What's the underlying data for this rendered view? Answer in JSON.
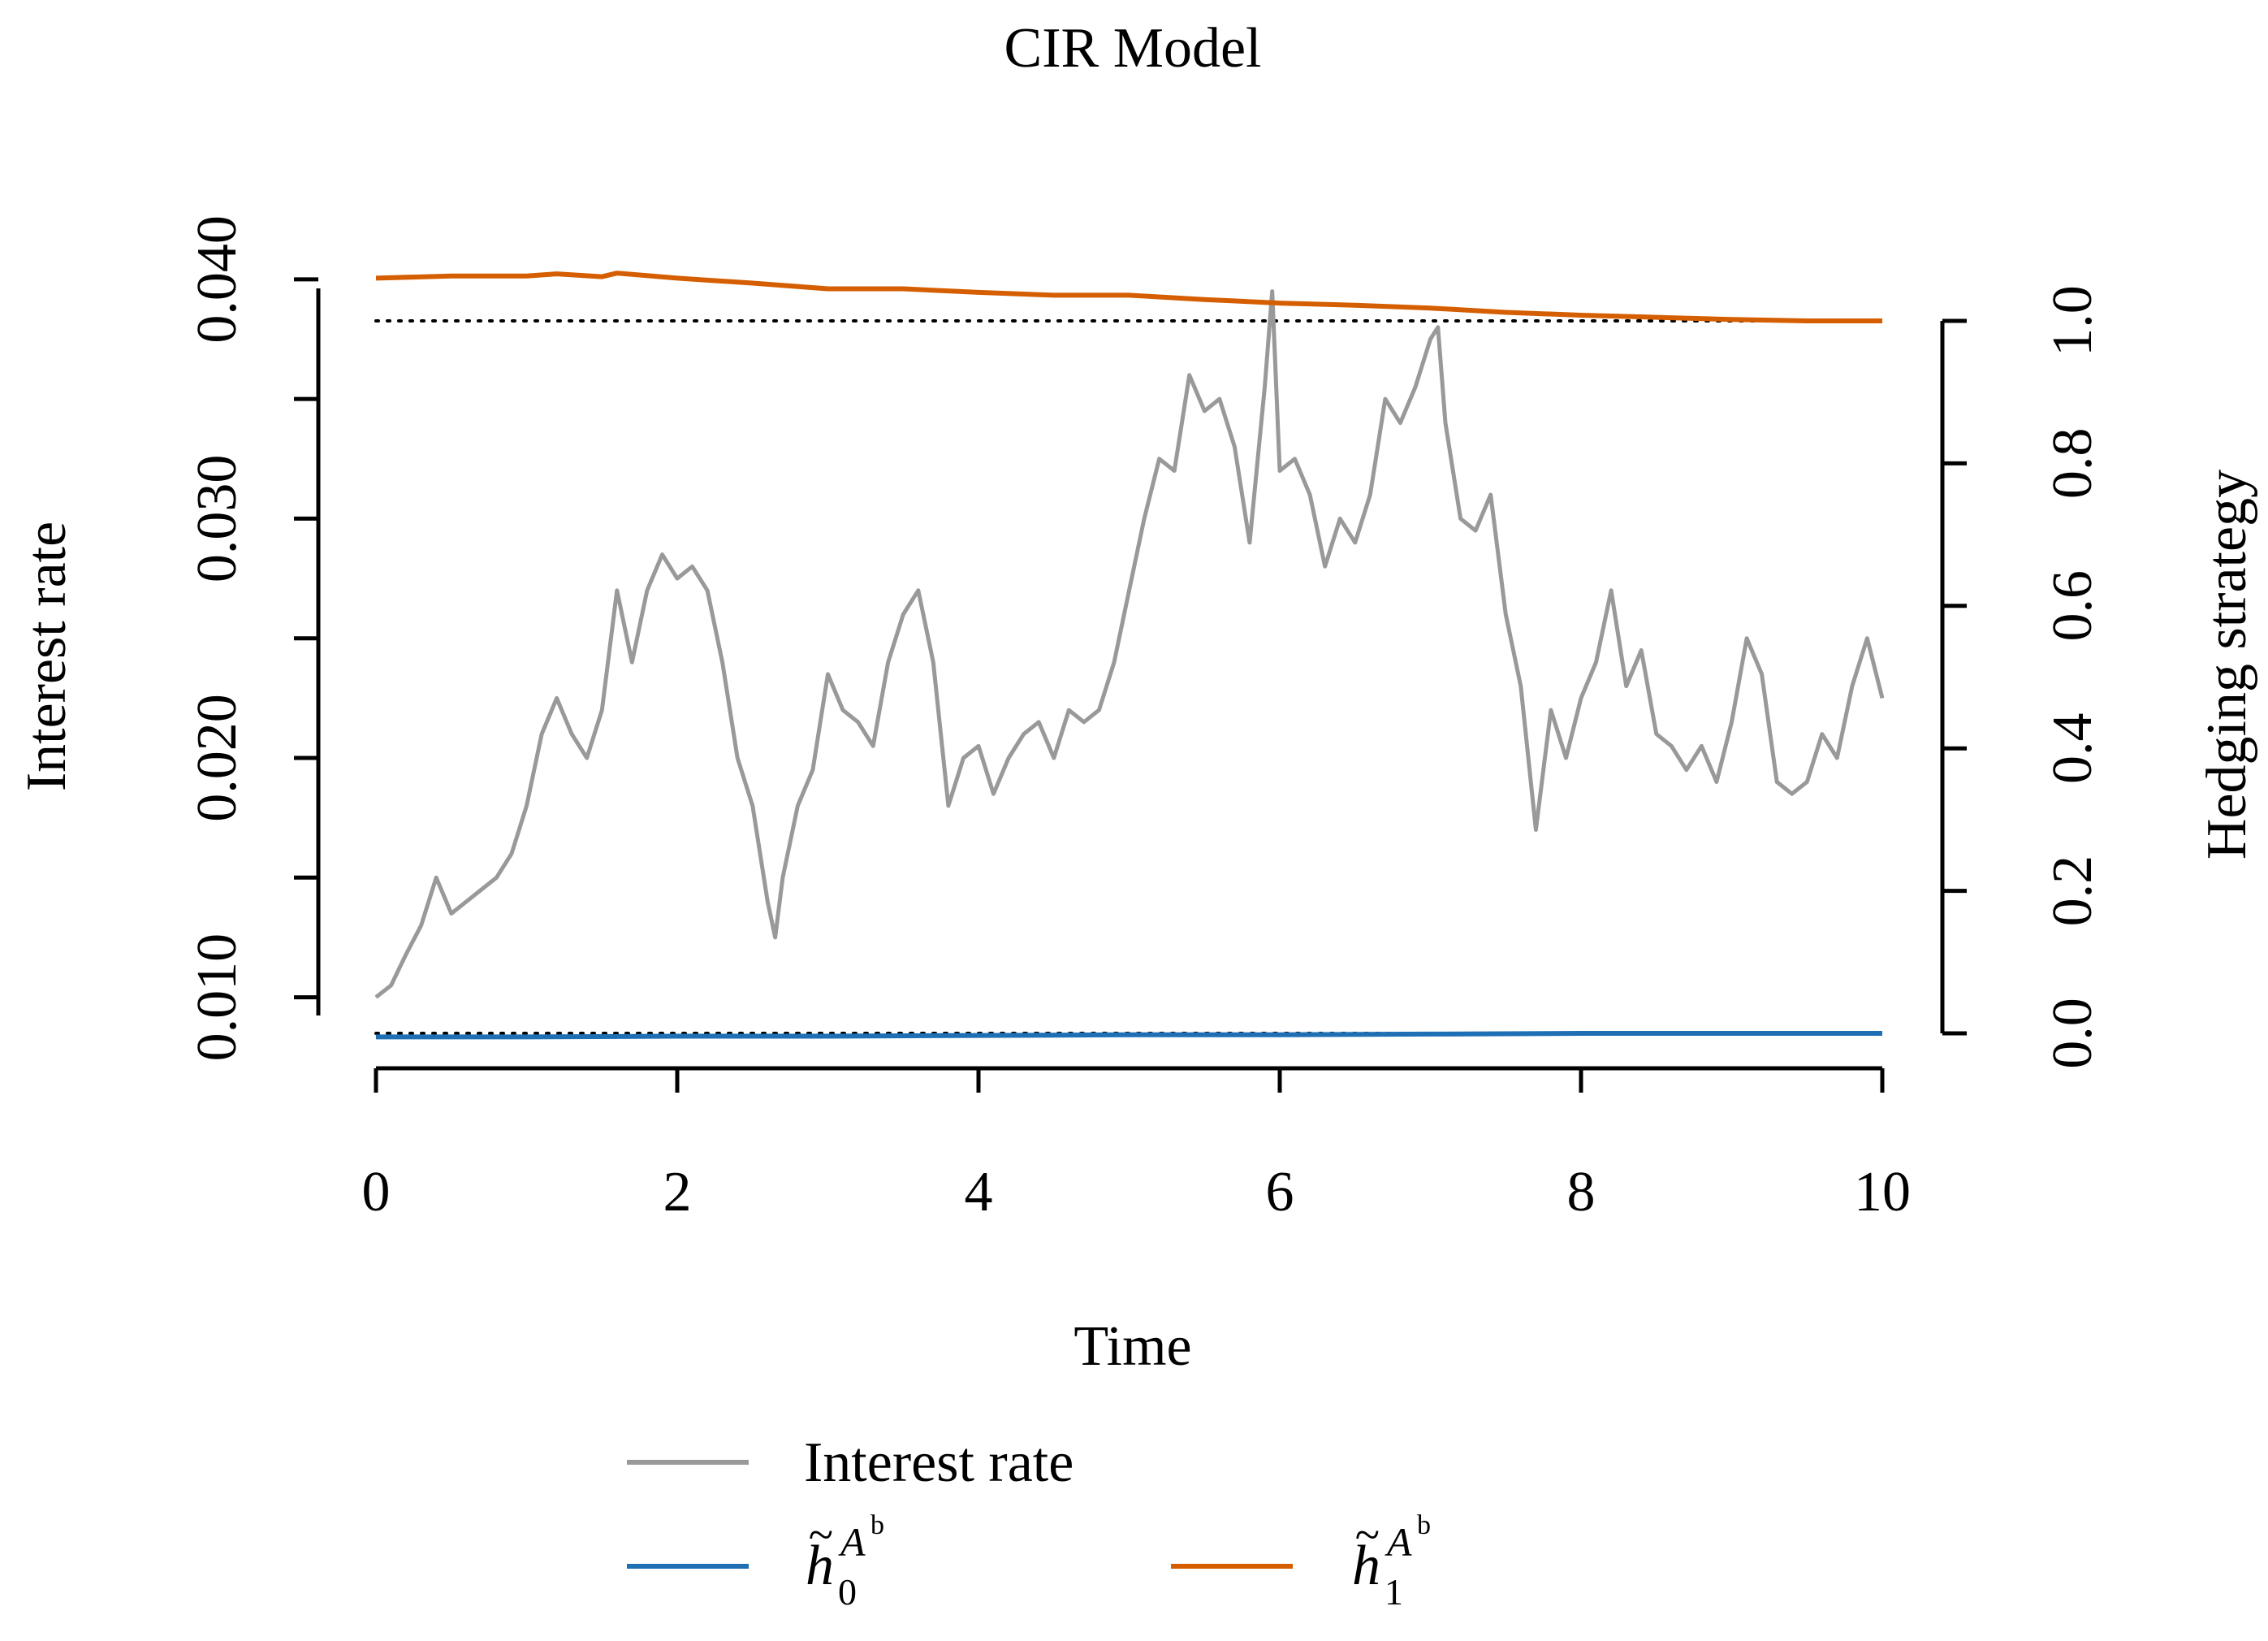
{
  "chart_data": {
    "type": "line",
    "title": "CIR Model",
    "xlabel": "Time",
    "ylabel_left": "Interest rate",
    "ylabel_right": "Hedging strategy",
    "xlim": [
      0,
      10
    ],
    "ylim_left": [
      0.0089,
      0.0403
    ],
    "ylim_right": [
      0.0,
      1.0
    ],
    "x_ticks": [
      0,
      2,
      4,
      6,
      8,
      10
    ],
    "x_tick_labels": [
      "0",
      "2",
      "4",
      "6",
      "8",
      "10"
    ],
    "y_left_ticks": [
      0.01,
      0.015,
      0.02,
      0.025,
      0.03,
      0.035,
      0.04
    ],
    "y_left_tick_labels": [
      "0.010",
      "",
      "0.020",
      "",
      "0.030",
      "",
      "0.040"
    ],
    "y_right_ticks": [
      0.0,
      0.2,
      0.4,
      0.6,
      0.8,
      1.0
    ],
    "y_right_tick_labels": [
      "0.0",
      "0.2",
      "0.4",
      "0.6",
      "0.8",
      "1.0"
    ],
    "reference_lines_right": [
      0.0,
      1.0
    ],
    "legend_position": "bottom",
    "series": [
      {
        "name": "Interest rate",
        "axis": "left",
        "color": "#999999",
        "x": [
          0,
          0.1,
          0.2,
          0.3,
          0.4,
          0.5,
          0.6,
          0.7,
          0.8,
          0.9,
          1.0,
          1.1,
          1.2,
          1.3,
          1.4,
          1.5,
          1.6,
          1.7,
          1.8,
          1.9,
          2.0,
          2.1,
          2.2,
          2.3,
          2.4,
          2.5,
          2.6,
          2.65,
          2.7,
          2.8,
          2.9,
          3.0,
          3.1,
          3.2,
          3.3,
          3.4,
          3.5,
          3.6,
          3.7,
          3.8,
          3.9,
          4.0,
          4.1,
          4.2,
          4.3,
          4.4,
          4.5,
          4.6,
          4.7,
          4.8,
          4.9,
          5.0,
          5.1,
          5.2,
          5.3,
          5.4,
          5.5,
          5.6,
          5.7,
          5.8,
          5.9,
          5.95,
          6.0,
          6.1,
          6.2,
          6.3,
          6.4,
          6.5,
          6.6,
          6.7,
          6.8,
          6.9,
          7.0,
          7.05,
          7.1,
          7.2,
          7.3,
          7.4,
          7.5,
          7.6,
          7.7,
          7.8,
          7.9,
          8.0,
          8.1,
          8.2,
          8.3,
          8.4,
          8.5,
          8.6,
          8.7,
          8.8,
          8.9,
          9.0,
          9.1,
          9.2,
          9.3,
          9.4,
          9.5,
          9.6,
          9.7,
          9.8,
          9.9,
          10.0
        ],
        "values": [
          0.01,
          0.0105,
          0.0118,
          0.013,
          0.015,
          0.0135,
          0.014,
          0.0145,
          0.015,
          0.016,
          0.018,
          0.021,
          0.0225,
          0.021,
          0.02,
          0.022,
          0.027,
          0.024,
          0.027,
          0.0285,
          0.0275,
          0.028,
          0.027,
          0.024,
          0.02,
          0.018,
          0.014,
          0.0125,
          0.015,
          0.018,
          0.0195,
          0.0235,
          0.022,
          0.0215,
          0.0205,
          0.024,
          0.026,
          0.027,
          0.024,
          0.018,
          0.02,
          0.0205,
          0.0185,
          0.02,
          0.021,
          0.0215,
          0.02,
          0.022,
          0.0215,
          0.022,
          0.024,
          0.027,
          0.03,
          0.0325,
          0.032,
          0.036,
          0.0345,
          0.035,
          0.033,
          0.029,
          0.0355,
          0.0395,
          0.032,
          0.0325,
          0.031,
          0.028,
          0.03,
          0.029,
          0.031,
          0.035,
          0.034,
          0.0355,
          0.0375,
          0.038,
          0.034,
          0.03,
          0.0295,
          0.031,
          0.026,
          0.023,
          0.017,
          0.022,
          0.02,
          0.0225,
          0.024,
          0.027,
          0.023,
          0.0245,
          0.021,
          0.0205,
          0.0195,
          0.0205,
          0.019,
          0.0215,
          0.025,
          0.0235,
          0.019,
          0.0185,
          0.019,
          0.021,
          0.02,
          0.023,
          0.025,
          0.0225
        ]
      },
      {
        "name": "h̃0^A^b",
        "legend_label": {
          "main": "h",
          "accent": "~",
          "subscript": "0",
          "superscript": "A",
          "super_superscript": "b"
        },
        "axis": "right",
        "color": "#1F6FB5",
        "x": [
          0,
          1,
          2,
          3,
          4,
          5,
          6,
          7,
          8,
          9,
          10
        ],
        "values": [
          -0.005,
          -0.005,
          -0.004,
          -0.004,
          -0.003,
          -0.002,
          -0.002,
          -0.001,
          0.0,
          0.0,
          0.0
        ]
      },
      {
        "name": "h̃1^A^b",
        "legend_label": {
          "main": "h",
          "accent": "~",
          "subscript": "1",
          "superscript": "A",
          "super_superscript": "b"
        },
        "axis": "right",
        "color": "#D55E00",
        "x": [
          0,
          0.5,
          1.0,
          1.2,
          1.5,
          1.6,
          2.0,
          2.5,
          3.0,
          3.5,
          4.0,
          4.5,
          5.0,
          5.5,
          6.0,
          6.5,
          7.0,
          7.5,
          8.0,
          8.5,
          9.0,
          9.5,
          10.0
        ],
        "values": [
          1.06,
          1.063,
          1.063,
          1.066,
          1.062,
          1.067,
          1.06,
          1.053,
          1.045,
          1.045,
          1.04,
          1.036,
          1.036,
          1.03,
          1.025,
          1.022,
          1.018,
          1.012,
          1.008,
          1.005,
          1.002,
          1.0,
          1.0
        ]
      }
    ]
  }
}
